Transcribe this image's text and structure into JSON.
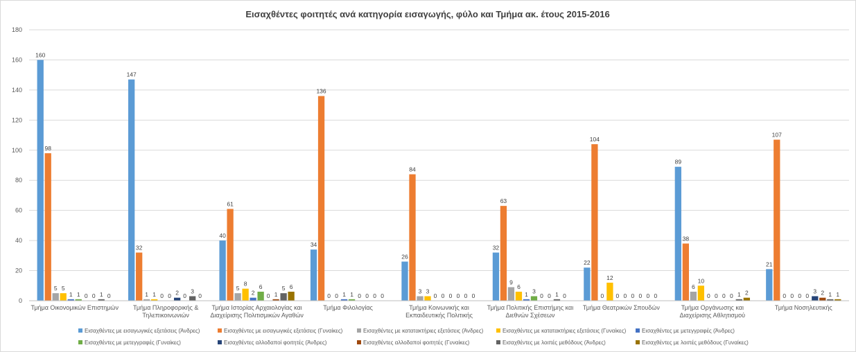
{
  "chart_data": {
    "type": "bar",
    "title": "Εισαχθέντες φοιτητές ανά κατηγορία εισαγωγής, φύλο και Τμήμα ακ. έτους 2015-2016",
    "xlabel": "",
    "ylabel": "",
    "ylim": [
      0,
      180
    ],
    "yticks": [
      0,
      20,
      40,
      60,
      80,
      100,
      120,
      140,
      160,
      180
    ],
    "grid": true,
    "legend_position": "bottom",
    "categories": [
      [
        "Τμήμα Οικονομικών Επιστημών"
      ],
      [
        "Τμήμα Πληροφορικής &",
        "Τηλεπικοινωνιών"
      ],
      [
        "Τμήμα Ιστορίας Αρχαιολογίας και",
        "Διαχείρισης Πολιτισμικών Αγαθών"
      ],
      [
        "Τμήμα Φιλολογίας"
      ],
      [
        "Τμήμα Κοινωνικής και",
        "Εκπαιδευτικής Πολιτικής"
      ],
      [
        "Τμήμα Πολιτικής Επιστήμης και",
        "Διεθνών Σχέσεων"
      ],
      [
        "Τμήμα Θεατρικών Σπουδών"
      ],
      [
        "Τμήμα Οργάνωσης και",
        "Διαχείρισης Αθλητισμού"
      ],
      [
        "Τμήμα Νοσηλευτικής"
      ]
    ],
    "series": [
      {
        "name": "Εισαχθέντες με εισαγωγικές εξετάσεις (Άνδρες)",
        "color": "#5B9BD5",
        "values": [
          160,
          147,
          40,
          34,
          26,
          32,
          22,
          89,
          21
        ]
      },
      {
        "name": "Εισαχθέντες με εισαγωγικές εξετάσεις (Γυναίκες)",
        "color": "#ED7D31",
        "values": [
          98,
          32,
          61,
          136,
          84,
          63,
          104,
          38,
          107
        ]
      },
      {
        "name": "Εισαχθέντες με κατατακτήριες εξετάσεις (Άνδρες)",
        "color": "#A5A5A5",
        "values": [
          5,
          1,
          5,
          0,
          3,
          9,
          0,
          6,
          0
        ]
      },
      {
        "name": "Εισαχθέντες με κατατακτήριες εξετάσεις (Γυναίκες)",
        "color": "#FFC000",
        "values": [
          5,
          1,
          8,
          0,
          3,
          6,
          12,
          10,
          0
        ]
      },
      {
        "name": "Εισαχθέντες με μετεγγραφές (Άνδρες)",
        "color": "#4472C4",
        "values": [
          1,
          0,
          2,
          1,
          0,
          1,
          0,
          0,
          0
        ]
      },
      {
        "name": "Εισαχθέντες με μετεγγραφές (Γυναίκες)",
        "color": "#70AD47",
        "values": [
          1,
          0,
          6,
          1,
          0,
          3,
          0,
          0,
          0
        ]
      },
      {
        "name": "Εισαχθέντες αλλοδαποί φοιτητές (Άνδρες)",
        "color": "#264478",
        "values": [
          0,
          2,
          0,
          0,
          0,
          0,
          0,
          0,
          3
        ]
      },
      {
        "name": "Εισαχθέντες αλλοδαποί φοιτητές (Γυναίκες)",
        "color": "#9E480E",
        "values": [
          0,
          0,
          1,
          0,
          0,
          0,
          0,
          0,
          2
        ]
      },
      {
        "name": "Εισαχθέντες με λοιπές μεθόδους (Άνδρες)",
        "color": "#636363",
        "values": [
          1,
          3,
          5,
          0,
          0,
          1,
          0,
          1,
          1
        ]
      },
      {
        "name": "Εισαχθέντες με λοιπές μεθόδους (Γυναίκες)",
        "color": "#997300",
        "values": [
          0,
          0,
          6,
          0,
          0,
          0,
          0,
          2,
          1
        ]
      }
    ]
  }
}
